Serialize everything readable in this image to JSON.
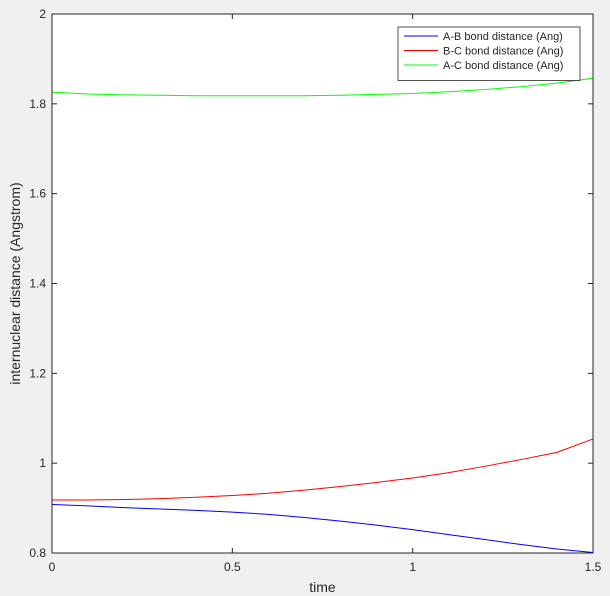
{
  "chart_data": {
    "type": "line",
    "xlabel": "time",
    "ylabel": "internuclear distance (Angstrom)",
    "xlim": [
      0,
      1.5
    ],
    "ylim": [
      0.8,
      2.0
    ],
    "xticks": [
      0,
      0.5,
      1,
      1.5
    ],
    "xtick_labels": [
      "0",
      "0.5",
      "1",
      "1.5"
    ],
    "yticks": [
      0.8,
      1.0,
      1.2,
      1.4,
      1.6,
      1.8,
      2.0
    ],
    "ytick_labels": [
      "0.8",
      "1",
      "1.2",
      "1.4",
      "1.6",
      "1.8",
      "2"
    ],
    "grid": false,
    "legend_position": "top-right",
    "x": [
      0,
      0.1,
      0.2,
      0.3,
      0.4,
      0.5,
      0.6,
      0.7,
      0.8,
      0.9,
      1.0,
      1.1,
      1.2,
      1.3,
      1.4,
      1.5
    ],
    "series": [
      {
        "name": "A-B bond distance (Ang)",
        "color": "#0000ff",
        "values": [
          0.908,
          0.905,
          0.901,
          0.898,
          0.895,
          0.891,
          0.886,
          0.879,
          0.871,
          0.862,
          0.852,
          0.841,
          0.83,
          0.819,
          0.809,
          0.801
        ]
      },
      {
        "name": "B-C bond distance (Ang)",
        "color": "#ff0000",
        "values": [
          0.918,
          0.918,
          0.919,
          0.921,
          0.924,
          0.928,
          0.933,
          0.94,
          0.948,
          0.957,
          0.967,
          0.979,
          0.993,
          1.008,
          1.024,
          1.054
        ]
      },
      {
        "name": "A-C bond distance (Ang)",
        "color": "#00ff00",
        "values": [
          1.826,
          1.822,
          1.82,
          1.819,
          1.818,
          1.818,
          1.818,
          1.818,
          1.819,
          1.821,
          1.823,
          1.827,
          1.832,
          1.838,
          1.846,
          1.857
        ]
      }
    ]
  }
}
